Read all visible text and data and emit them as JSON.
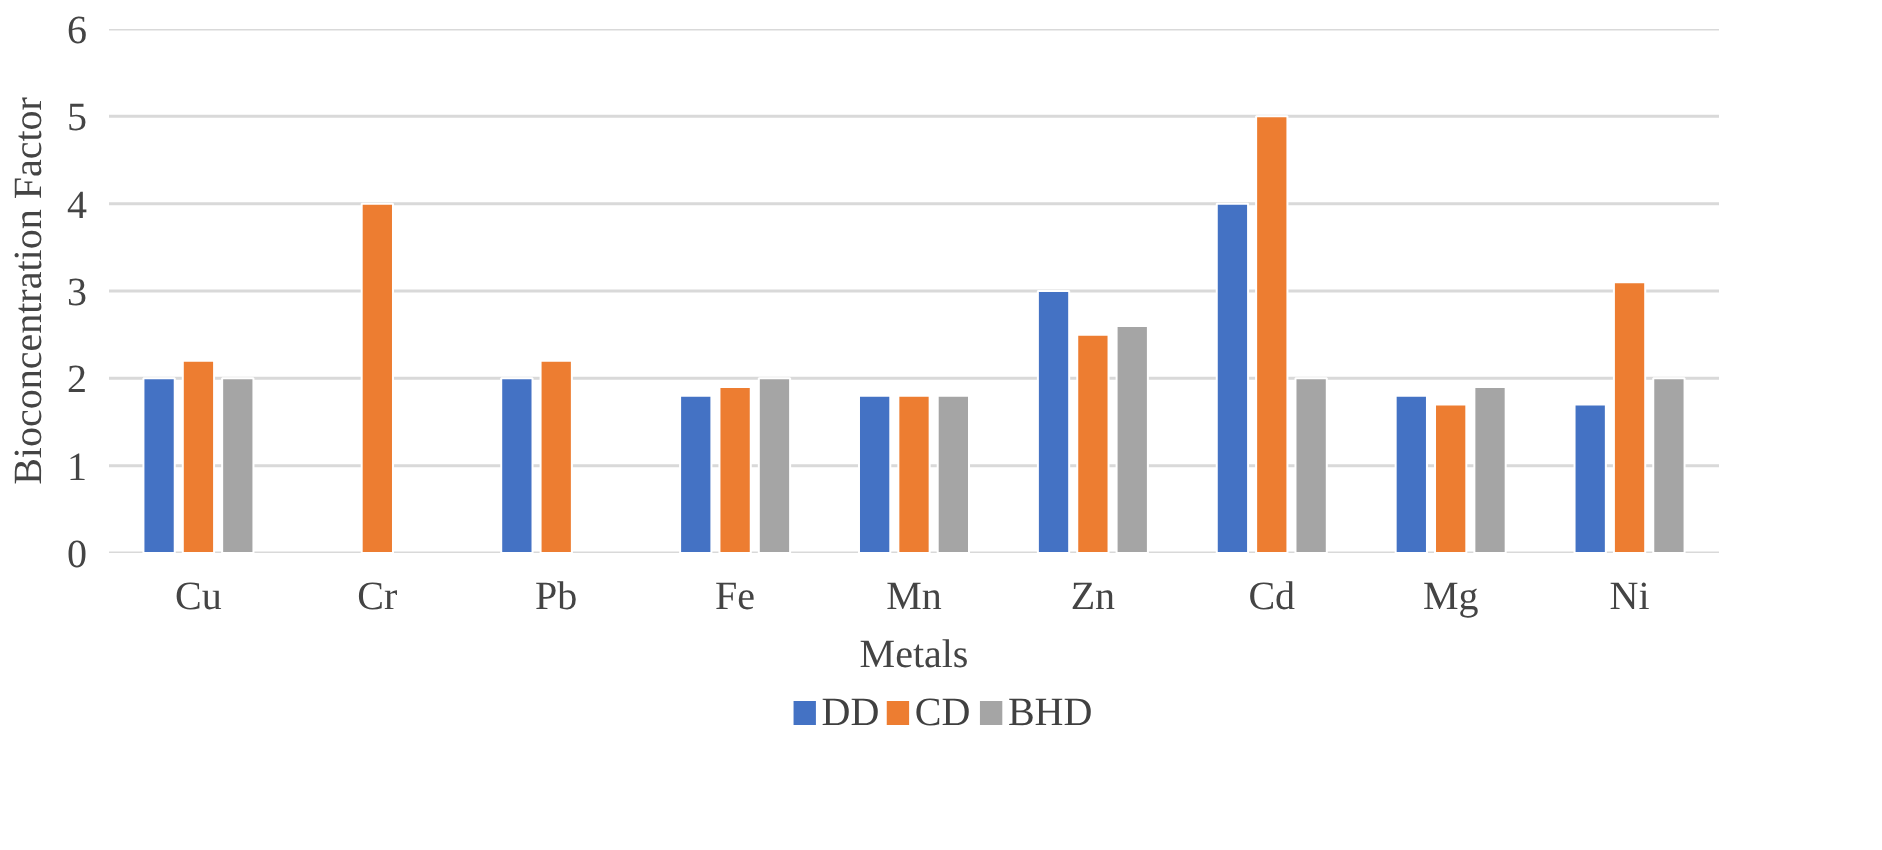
{
  "chart_data": {
    "type": "bar",
    "xlabel": "Metals",
    "ylabel": "Bioconcentration Factor",
    "categories": [
      "Cu",
      "Cr",
      "Pb",
      "Fe",
      "Mn",
      "Zn",
      "Cd",
      "Mg",
      "Ni"
    ],
    "series": [
      {
        "name": "DD",
        "color": "#4472c4",
        "values": [
          2,
          null,
          2,
          1.8,
          1.8,
          3,
          4,
          1.8,
          1.7
        ]
      },
      {
        "name": "CD",
        "color": "#ed7d31",
        "values": [
          2.2,
          4,
          2.2,
          1.9,
          1.8,
          2.5,
          5,
          1.7,
          3.1
        ]
      },
      {
        "name": "BHD",
        "color": "#a5a5a5",
        "values": [
          2,
          null,
          null,
          2,
          1.8,
          2.6,
          2,
          1.9,
          2
        ]
      }
    ],
    "ylim": [
      0,
      6
    ],
    "yticks": [
      0,
      1,
      2,
      3,
      4,
      5,
      6
    ],
    "grid": "y",
    "legend": "bottom"
  }
}
